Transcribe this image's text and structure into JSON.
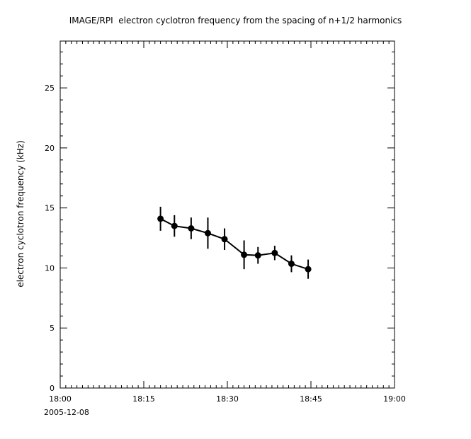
{
  "chart_data": {
    "type": "line",
    "title": "IMAGE/RPI  electron cyclotron frequency from the spacing of n+1/2 harmonics",
    "xlabel": "",
    "ylabel": "electron cyclotron frequency (kHz)",
    "date_label": "2005-12-08",
    "x_ticks": [
      "18:00",
      "18:15",
      "18:30",
      "18:45",
      "19:00"
    ],
    "x_tick_minutes": [
      0,
      15,
      30,
      45,
      60
    ],
    "x_range_minutes": [
      0,
      60
    ],
    "x_minor_step_minutes": 1,
    "ylim": [
      0,
      28.9
    ],
    "y_major_ticks": [
      0,
      5,
      10,
      15,
      20,
      25
    ],
    "y_minor_step": 1,
    "grid": false,
    "legend": false,
    "marker": "filled-circle",
    "error_bars": true,
    "series": [
      {
        "name": "electron cyclotron frequency",
        "color": "#000000",
        "points": [
          {
            "time": "18:18",
            "t_minutes": 18,
            "y_kHz": 14.1,
            "err_kHz": 1.0
          },
          {
            "time": "18:20",
            "t_minutes": 20.5,
            "y_kHz": 13.5,
            "err_kHz": 0.9
          },
          {
            "time": "18:23",
            "t_minutes": 23.5,
            "y_kHz": 13.3,
            "err_kHz": 0.9
          },
          {
            "time": "18:26",
            "t_minutes": 26.5,
            "y_kHz": 12.9,
            "err_kHz": 1.3
          },
          {
            "time": "18:29",
            "t_minutes": 29.5,
            "y_kHz": 12.4,
            "err_kHz": 0.9
          },
          {
            "time": "18:33",
            "t_minutes": 33,
            "y_kHz": 11.1,
            "err_kHz": 1.2
          },
          {
            "time": "18:35",
            "t_minutes": 35.5,
            "y_kHz": 11.05,
            "err_kHz": 0.7
          },
          {
            "time": "18:38",
            "t_minutes": 38.5,
            "y_kHz": 11.25,
            "err_kHz": 0.6
          },
          {
            "time": "18:41",
            "t_minutes": 41.5,
            "y_kHz": 10.35,
            "err_kHz": 0.7
          },
          {
            "time": "18:44",
            "t_minutes": 44.5,
            "y_kHz": 9.9,
            "err_kHz": 0.8
          }
        ]
      }
    ]
  }
}
